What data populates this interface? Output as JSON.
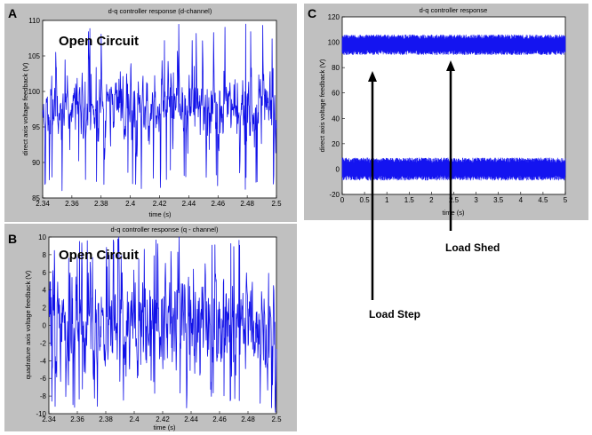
{
  "chart_data": [
    {
      "panel_letter": "A",
      "type": "line",
      "title": "d-q controller response (d-channel)",
      "xlabel": "time (s)",
      "ylabel": "direct axis voltage feedback (V)",
      "xlim": [
        2.34,
        2.5
      ],
      "ylim": [
        85,
        110
      ],
      "xticks": [
        "2.34",
        "2.36",
        "2.38",
        "2.4",
        "2.42",
        "2.44",
        "2.46",
        "2.48",
        "2.5"
      ],
      "yticks": [
        "85",
        "90",
        "95",
        "100",
        "105",
        "110"
      ],
      "annotation": "Open Circuit",
      "signal": {
        "mean": 98,
        "noise_std": 2.3,
        "spike_min": 86,
        "spike_max": 109.5,
        "samples": 700
      },
      "color": "#1010e8"
    },
    {
      "panel_letter": "B",
      "type": "line",
      "title": "d-q controller response (q - channel)",
      "xlabel": "time (s)",
      "ylabel": "quadrature axis voltage feedback (V)",
      "xlim": [
        2.34,
        2.5
      ],
      "ylim": [
        -10,
        10
      ],
      "xticks": [
        "2.34",
        "2.36",
        "2.38",
        "2.4",
        "2.42",
        "2.44",
        "2.46",
        "2.48",
        "2.5"
      ],
      "yticks": [
        "-10",
        "-8",
        "-6",
        "-4",
        "-2",
        "0",
        "2",
        "4",
        "6",
        "8",
        "10"
      ],
      "annotation": "Open Circuit",
      "signal": {
        "mean": 0,
        "noise_std": 2.8,
        "spike_min": -9.5,
        "spike_max": 9.8,
        "samples": 700
      },
      "color": "#1010e8"
    },
    {
      "panel_letter": "C",
      "type": "line",
      "title": "d-q controller response",
      "xlabel": "time (s)",
      "ylabel": "direct axis voltage feedback (V)",
      "xlim": [
        0,
        5
      ],
      "ylim": [
        -20,
        120
      ],
      "xticks": [
        "0",
        "0.5",
        "1",
        "1.5",
        "2",
        "2.5",
        "3",
        "3.5",
        "4",
        "4.5",
        "5"
      ],
      "yticks": [
        "-20",
        "0",
        "20",
        "40",
        "60",
        "80",
        "100",
        "120"
      ],
      "series": [
        {
          "band_center": 98,
          "band_half_width": 8
        },
        {
          "band_center": 0,
          "band_half_width": 9
        }
      ],
      "annotations": [
        {
          "text": "Load Step",
          "x": 0.7,
          "y": 93
        },
        {
          "text": "Load Shed",
          "x": 2.45,
          "y": 93
        }
      ],
      "color": "#1414f0"
    }
  ]
}
